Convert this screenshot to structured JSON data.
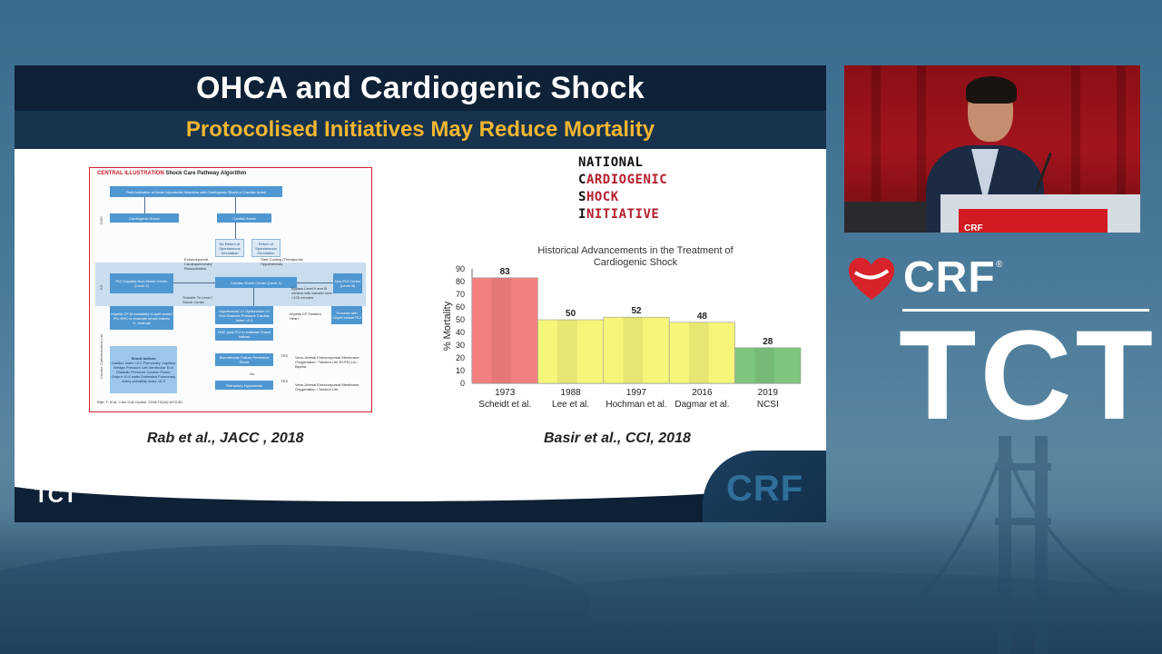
{
  "slide": {
    "title": "OHCA and Cardiogenic Shock",
    "subtitle": "Protocolised Initiatives May Reduce Mortality",
    "caption_left": "Rab et al., JACC , 2018",
    "caption_right": "Basir et al., CCI, 2018",
    "logo_crf": "CRF",
    "logo_tct": "TCT",
    "watermark": "CRF"
  },
  "flowchart": {
    "title_red": "CENTRAL ILLUSTRATION",
    "title_black": "Shock Care Pathway Algorithm",
    "top_box": "Field Activation of Acute Myocardial Infarction with Cardiogenic Shock or Cardiac Arrest",
    "cardiogenic_shock": "Cardiogenic Shock",
    "cardiac_arrest": "Cardiac Arrest",
    "no_return": "No Return of Spontaneous Circulation",
    "return": "Return of Spontaneous Circulation",
    "ecpr": "Extracorporeal Cardiopulmonary Resuscitation",
    "start_cooling": "Start Cooling (Therapeutic Hypothermia)",
    "pci_center": "PCI-Capable Non-Shock Center (Level 2)",
    "shock_center": "Cardiac Shock Center (Level 1)",
    "non_pci": "Non-PCI Center (Level III)",
    "transfer": "Transfer To Level I Shock Center",
    "bypass": "Bypass Level II and III centers with transfer time <120 minutes",
    "impella_box": "Impella CP (if available) Culprit vessel PCI RHC to evaluate shock indices +/- inotrope",
    "hypertension": "Hypotension LV Dysfunction LV End Diastolic Pressure Cardiac Index <2.2",
    "impella_cp": "Impella CP Tandem Heart",
    "proceed": "Proceed with Culprit vessel PCI",
    "rhc": "RHC post PCI to evaluate Shock indices",
    "shock_indices_title": "Shock Indices",
    "shock_indices": "Cardiac Index <2.2 Pulmonary Capillary Wedge Pressure Left Ventricular End Diastolic Pressure Cardiac Power Output <0.6 watts Estimated Pulmonary artery pulsatility index <0.9",
    "biventricular": "Biventricular Failure Persistent Shock",
    "refractory": "Refractory Hypoxemia",
    "va_ecmo1": "Veno-Arterial Extracorporeal Membrane Oxygenation / Tandem Life ECPELLA / Bipella",
    "va_ecmo2": "Veno-Arterial Extracorporeal Membrane Oxygenation / Tandem Life",
    "yes": "YES",
    "no": "No",
    "side_ems": "EMS",
    "side_ed": "ED",
    "side_cath": "Cardiac Catheterization Lab",
    "citation": "Rab, T. et al. J Am Coll Cardiol. 2018;72(16):1972-80."
  },
  "ncsi_logo": {
    "rows": [
      {
        "first": "N",
        "rest": "ATIONAL",
        "rest_color": "#111111"
      },
      {
        "first": "C",
        "rest": "ARDIOGENIC",
        "rest_color": "#b51f2e"
      },
      {
        "first": "S",
        "rest": "HOCK",
        "rest_color": "#b51f2e"
      },
      {
        "first": "I",
        "rest": "NITIATIVE",
        "rest_color": "#b51f2e"
      }
    ]
  },
  "chart_data": {
    "type": "bar",
    "title": "Historical Advancements in the Treatment of Cardiogenic Shock",
    "title_lines": [
      "Historical Advancements in the Treatment of",
      "Cardiogenic Shock"
    ],
    "ylabel": "% Mortality",
    "ylim": [
      0,
      90
    ],
    "yticks": [
      0,
      10,
      20,
      30,
      40,
      50,
      60,
      70,
      80,
      90
    ],
    "categories": [
      "1973",
      "1988",
      "1997",
      "2016",
      "2019"
    ],
    "category_sublabels": [
      "Scheidt et al.",
      "Lee et al.",
      "Hochman et al.",
      "Dagmar et al.",
      "NCSI"
    ],
    "values": [
      83,
      50,
      52,
      48,
      28
    ],
    "colors": [
      "#f47f7f",
      "#f5f57a",
      "#f5f57a",
      "#f5f57a",
      "#7ec67e"
    ]
  },
  "brand": {
    "crf": "CRF",
    "reg": "®",
    "tct": "TCT"
  },
  "video": {
    "podium_text": "CRF"
  }
}
